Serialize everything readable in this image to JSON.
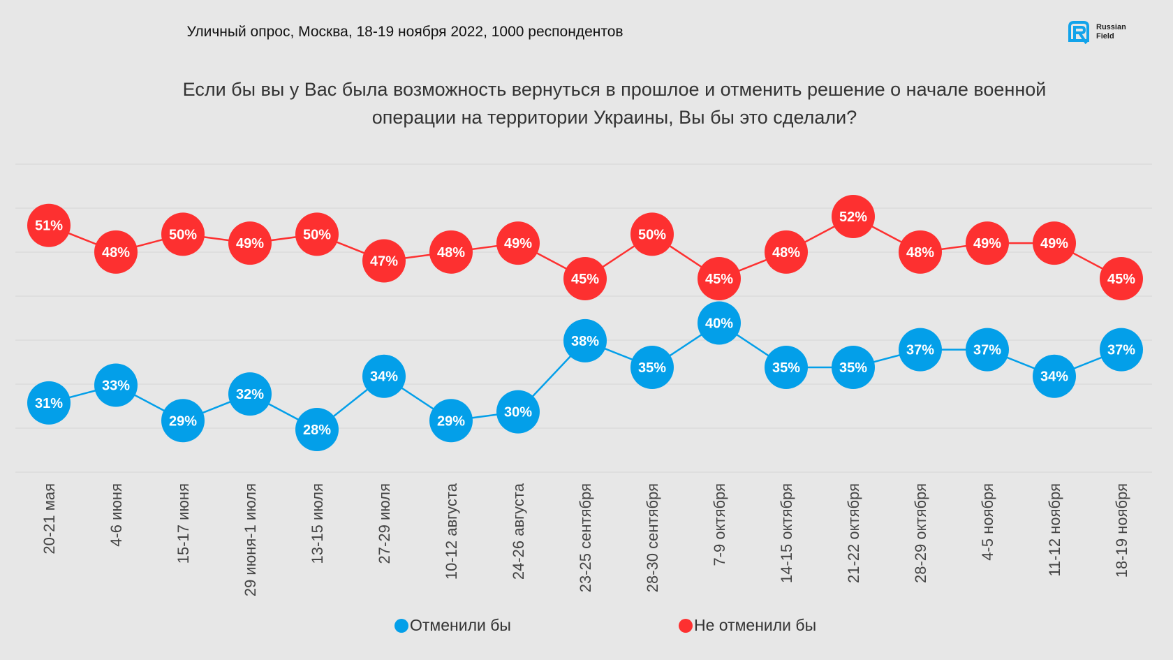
{
  "title": "Уличный опрос, Москва, 18-19 ноября 2022, 1000 респондентов",
  "logo": {
    "line1": "Russian",
    "line2": "Field"
  },
  "chart_data": {
    "type": "line",
    "title": "Если бы вы у Вас была возможность вернуться в прошлое и отменить решение о начале военной операции на территории Украины, Вы бы это сделали?",
    "categories": [
      "20-21 мая",
      "4-6 июня",
      "15-17 июня",
      "29 июня-1 июля",
      "13-15 июля",
      "27-29 июля",
      "10-12 августа",
      "24-26 августа",
      "23-25 сентября",
      "28-30 сентября",
      "7-9 октября",
      "14-15 октября",
      "21-22 октября",
      "28-29 октября",
      "4-5 ноября",
      "11-12 ноября",
      "18-19 ноября"
    ],
    "series": [
      {
        "name": "Отменили бы",
        "color": "#039fe9",
        "values": [
          31,
          33,
          29,
          32,
          28,
          34,
          29,
          30,
          38,
          35,
          40,
          35,
          35,
          37,
          37,
          34,
          37
        ]
      },
      {
        "name": "Не отменили бы",
        "color": "#fd3030",
        "values": [
          51,
          48,
          50,
          49,
          50,
          47,
          48,
          49,
          45,
          50,
          45,
          48,
          52,
          48,
          49,
          49,
          45
        ]
      }
    ],
    "ylim": [
      23.2,
      57.9
    ],
    "grid": true,
    "legend": "bottom"
  }
}
